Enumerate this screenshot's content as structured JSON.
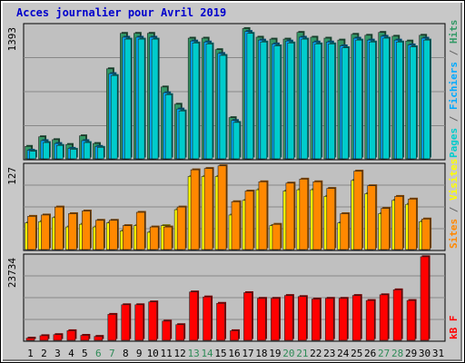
{
  "chart_data": {
    "type": "bar",
    "title": "Acces journalier pour Avril 2019",
    "categories": [
      "1",
      "2",
      "3",
      "4",
      "5",
      "6",
      "7",
      "8",
      "9",
      "10",
      "11",
      "12",
      "13",
      "14",
      "15",
      "16",
      "17",
      "18",
      "19",
      "20",
      "21",
      "22",
      "23",
      "24",
      "25",
      "26",
      "27",
      "28",
      "29",
      "30",
      "31"
    ],
    "weekend_days": [
      "6",
      "7",
      "13",
      "14",
      "20",
      "21",
      "27",
      "28"
    ],
    "panels": [
      {
        "name": "pages-fichiers-hits",
        "max_label": "1393",
        "ylim": [
          0,
          1393
        ],
        "legend": [
          {
            "text": "Pages",
            "color": "#00cccc"
          },
          {
            "text": " / ",
            "color": "#666666"
          },
          {
            "text": "Fichiers",
            "color": "#00aaff"
          },
          {
            "text": " / ",
            "color": "#666666"
          },
          {
            "text": "Hits",
            "color": "#339966"
          }
        ],
        "series": [
          {
            "name": "Hits",
            "color": "#339966",
            "values": [
              130,
              230,
              200,
              150,
              240,
              160,
              940,
              1310,
              1310,
              1310,
              750,
              570,
              1260,
              1260,
              1140,
              430,
              1360,
              1270,
              1250,
              1250,
              1320,
              1270,
              1260,
              1240,
              1300,
              1290,
              1320,
              1280,
              1230,
              1290,
              0
            ]
          },
          {
            "name": "Fichiers",
            "color": "#00aaff",
            "values": [
              90,
              190,
              160,
              110,
              190,
              130,
              890,
              1270,
              1270,
              1270,
              690,
              520,
              1230,
              1220,
              1100,
              400,
              1330,
              1240,
              1200,
              1230,
              1270,
              1220,
              1220,
              1180,
              1260,
              1240,
              1280,
              1240,
              1190,
              1260,
              0
            ]
          },
          {
            "name": "Pages",
            "color": "#00cccc",
            "values": [
              80,
              170,
              140,
              100,
              170,
              120,
              870,
              1250,
              1250,
              1250,
              670,
              500,
              1210,
              1200,
              1080,
              380,
              1310,
              1220,
              1180,
              1210,
              1250,
              1200,
              1200,
              1160,
              1240,
              1220,
              1260,
              1220,
              1170,
              1240,
              0
            ]
          }
        ]
      },
      {
        "name": "visites-sites",
        "max_label": "127",
        "ylim": [
          0,
          127
        ],
        "legend": [
          {
            "text": "Sites",
            "color": "#ff8800"
          },
          {
            "text": " / ",
            "color": "#666666"
          },
          {
            "text": "Visites",
            "color": "#ffff00"
          }
        ],
        "series": [
          {
            "name": "Visites",
            "color": "#ffff00",
            "values": [
              40,
              42,
              48,
              34,
              38,
              34,
              40,
              28,
              36,
              26,
              36,
              60,
              110,
              110,
              110,
              52,
              74,
              90,
              36,
              88,
              90,
              90,
              80,
              40,
              104,
              84,
              54,
              74,
              68,
              42,
              0
            ]
          },
          {
            "name": "Sites",
            "color": "#ff8800",
            "values": [
              50,
              52,
              64,
              54,
              58,
              44,
              44,
              36,
              56,
              34,
              34,
              64,
              120,
              122,
              126,
              72,
              88,
              102,
              38,
              100,
              106,
              102,
              92,
              54,
              118,
              96,
              62,
              80,
              76,
              46,
              0
            ]
          }
        ]
      },
      {
        "name": "kb-f",
        "max_label": "23734",
        "ylim": [
          0,
          23734
        ],
        "legend": [
          {
            "text": "kB F",
            "color": "#ff0000"
          }
        ],
        "series": [
          {
            "name": "kB F",
            "color": "#ff0000",
            "values": [
              600,
              1300,
              1600,
              2700,
              1400,
              1100,
              7300,
              10000,
              10000,
              10800,
              5400,
              4400,
              13600,
              12200,
              10400,
              2700,
              13400,
              11800,
              11800,
              12600,
              12300,
              11600,
              11800,
              11800,
              12600,
              11200,
              12800,
              14200,
              11200,
              23500,
              0
            ]
          }
        ]
      }
    ]
  }
}
